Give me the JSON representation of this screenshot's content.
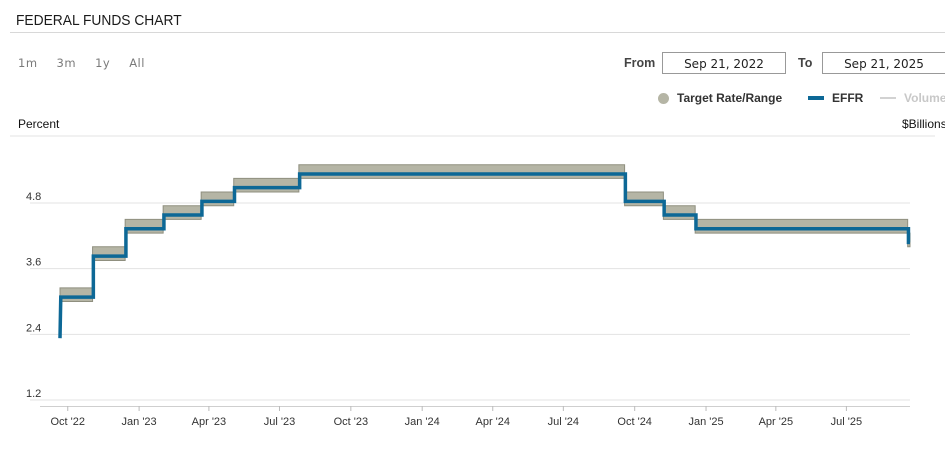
{
  "header": {
    "title": "FEDERAL FUNDS CHART"
  },
  "range_buttons": [
    "1m",
    "3m",
    "1y",
    "All"
  ],
  "date_range": {
    "from_label": "From",
    "from_value": "Sep 21, 2022",
    "to_label": "To",
    "to_value": "Sep 21, 2025"
  },
  "legend": {
    "target": "Target Rate/Range",
    "effr": "EFFR",
    "volume": "Volume"
  },
  "colors": {
    "effr": "#0d6896",
    "target_fill": "#b5b5a5",
    "target_edge": "#8f8f7f",
    "grid": "#e3e3e3"
  },
  "chart_data": {
    "type": "line",
    "ylabel": "Percent",
    "y2label": "$Billions",
    "ylim": [
      1.2,
      6.0
    ],
    "yticks": [
      "1.2",
      "2.4",
      "3.6",
      "4.8"
    ],
    "ytick_values": [
      1.2,
      2.4,
      3.6,
      4.8
    ],
    "xticks": [
      "Oct '22",
      "Jan '23",
      "Apr '23",
      "Jul '23",
      "Oct '23",
      "Jan '24",
      "Apr '24",
      "Jul '24",
      "Oct '24",
      "Jan '25",
      "Apr '25",
      "Jul '25"
    ],
    "xtick_dates": [
      "2022-10-01",
      "2023-01-01",
      "2023-04-01",
      "2023-07-01",
      "2023-10-01",
      "2024-01-01",
      "2024-04-01",
      "2024-07-01",
      "2024-10-01",
      "2025-01-01",
      "2025-04-01",
      "2025-07-01"
    ],
    "xlim": [
      "2022-09-21",
      "2025-09-21"
    ],
    "grid": true,
    "legend_position": "top-right",
    "series": [
      {
        "name": "Target Rate/Range",
        "kind": "band",
        "steps": [
          {
            "x": "2022-09-21",
            "low": 3.0,
            "high": 3.25
          },
          {
            "x": "2022-11-02",
            "low": 3.75,
            "high": 4.0
          },
          {
            "x": "2022-12-14",
            "low": 4.25,
            "high": 4.5
          },
          {
            "x": "2023-02-01",
            "low": 4.5,
            "high": 4.75
          },
          {
            "x": "2023-03-22",
            "low": 4.75,
            "high": 5.0
          },
          {
            "x": "2023-05-03",
            "low": 5.0,
            "high": 5.25
          },
          {
            "x": "2023-07-26",
            "low": 5.25,
            "high": 5.5
          },
          {
            "x": "2024-09-18",
            "low": 4.75,
            "high": 5.0
          },
          {
            "x": "2024-11-07",
            "low": 4.5,
            "high": 4.75
          },
          {
            "x": "2024-12-18",
            "low": 4.25,
            "high": 4.5
          },
          {
            "x": "2025-09-18",
            "low": 4.0,
            "high": 4.25
          }
        ],
        "end": "2025-09-21"
      },
      {
        "name": "EFFR",
        "kind": "step",
        "start": {
          "x": "2022-09-21",
          "y": 2.33
        },
        "steps": [
          {
            "x": "2022-09-22",
            "y": 3.08
          },
          {
            "x": "2022-11-03",
            "y": 3.83
          },
          {
            "x": "2022-12-15",
            "y": 4.33
          },
          {
            "x": "2023-02-02",
            "y": 4.58
          },
          {
            "x": "2023-03-23",
            "y": 4.83
          },
          {
            "x": "2023-05-04",
            "y": 5.08
          },
          {
            "x": "2023-07-27",
            "y": 5.33
          },
          {
            "x": "2024-09-19",
            "y": 4.83
          },
          {
            "x": "2024-11-08",
            "y": 4.58
          },
          {
            "x": "2024-12-19",
            "y": 4.33
          },
          {
            "x": "2025-09-19",
            "y": 4.08
          }
        ],
        "end": "2025-09-21"
      }
    ]
  }
}
